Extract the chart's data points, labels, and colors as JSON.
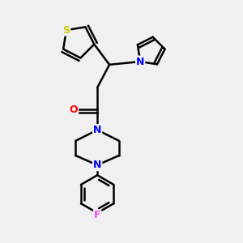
{
  "bg_color": "#f0f0f0",
  "bond_color": "#000000",
  "line_width": 1.8,
  "atom_colors": {
    "S": "#cccc00",
    "N": "#0000ff",
    "O": "#ff0000",
    "F": "#ff44ff",
    "C": "#000000"
  },
  "figsize": [
    3.0,
    3.0
  ],
  "dpi": 100
}
